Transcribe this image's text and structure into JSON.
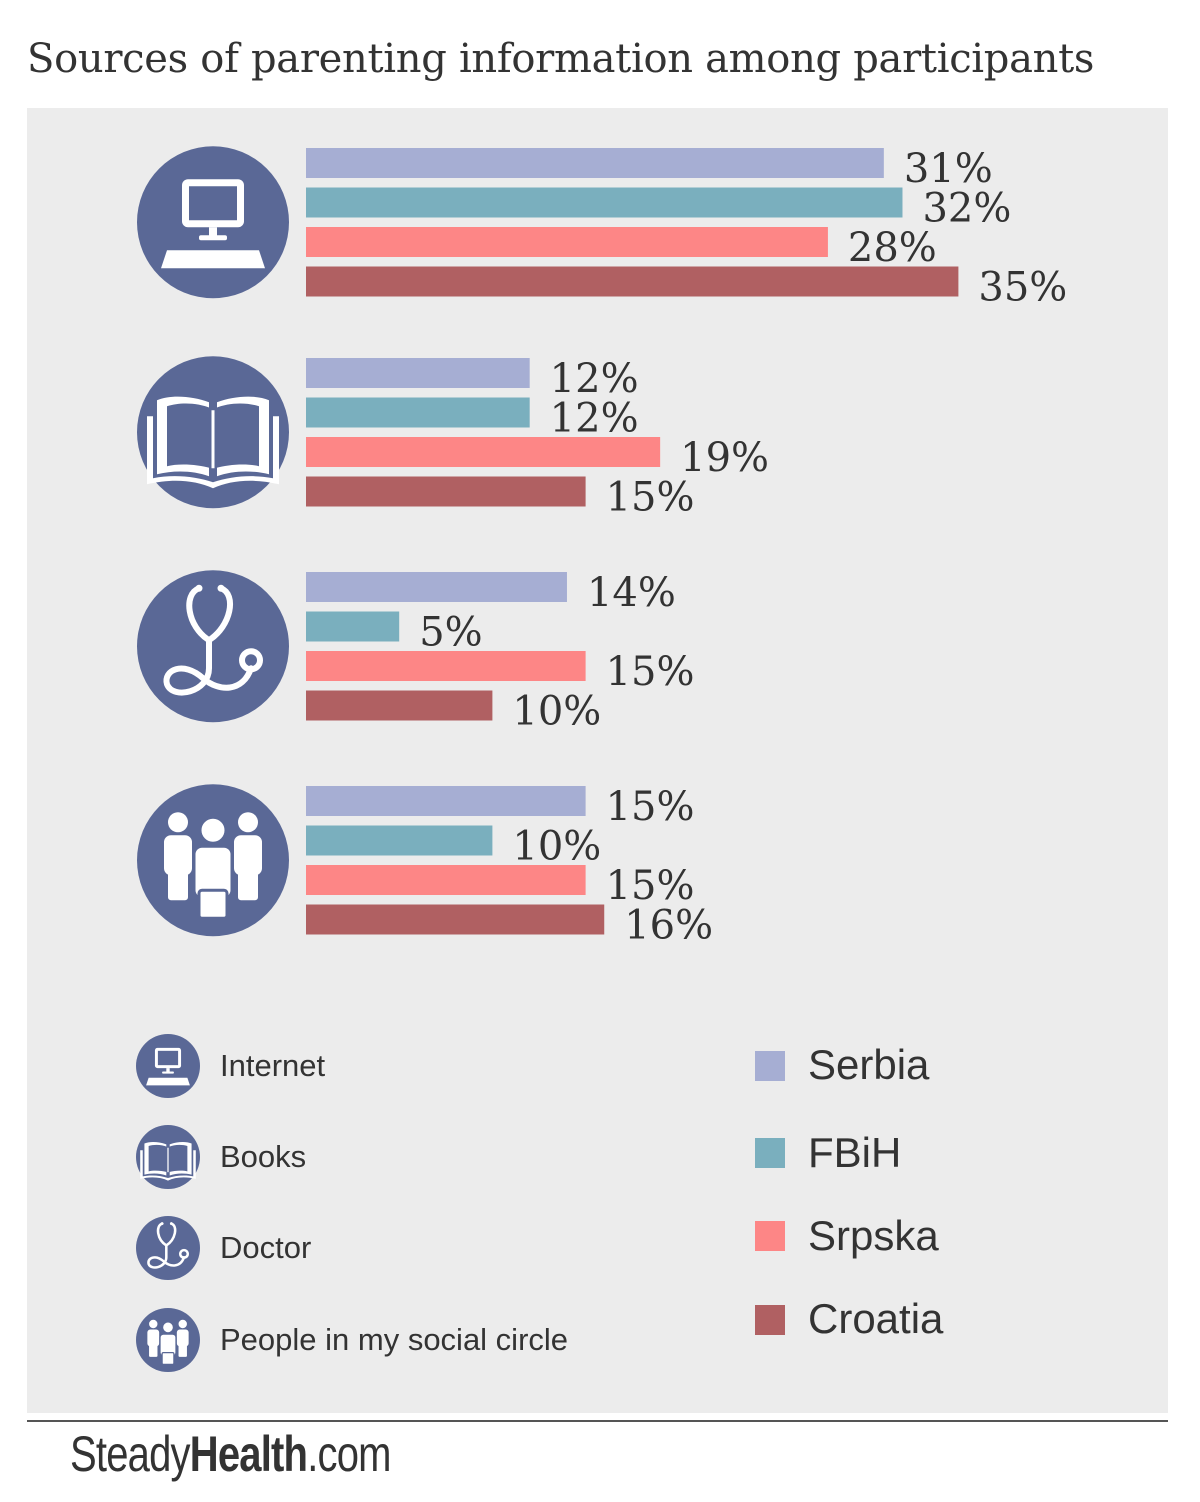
{
  "title": "Sources of parenting information among participants",
  "colors": {
    "panel_bg": "#ececec",
    "icon_circle": "#5a6896",
    "value_text": "#333333"
  },
  "chart_data": {
    "type": "bar",
    "orientation": "horizontal",
    "categories": [
      "Internet",
      "Books",
      "Doctor",
      "People in my social circle"
    ],
    "category_icons": [
      "computer-icon",
      "book-icon",
      "stethoscope-icon",
      "people-icon"
    ],
    "series": [
      {
        "name": "Serbia",
        "color": "#a6aed3",
        "values": [
          31,
          12,
          14,
          15
        ]
      },
      {
        "name": "FBiH",
        "color": "#7aafbe",
        "values": [
          32,
          12,
          5,
          10
        ]
      },
      {
        "name": "Srpska",
        "color": "#fd8686",
        "values": [
          28,
          19,
          15,
          15
        ]
      },
      {
        "name": "Croatia",
        "color": "#b06062",
        "values": [
          35,
          15,
          10,
          16
        ]
      }
    ],
    "value_unit": "%",
    "grid": false,
    "legend_position": "bottom"
  },
  "legend": {
    "categories": [
      {
        "label": "Internet",
        "icon": "computer-icon"
      },
      {
        "label": "Books",
        "icon": "book-icon"
      },
      {
        "label": "Doctor",
        "icon": "stethoscope-icon"
      },
      {
        "label": "People in my social circle",
        "icon": "people-icon"
      }
    ],
    "countries": [
      "Serbia",
      "FBiH",
      "Srpska",
      "Croatia"
    ]
  },
  "brand": {
    "prefix": "Steady",
    "bold": "Health",
    "suffix": ".com"
  }
}
